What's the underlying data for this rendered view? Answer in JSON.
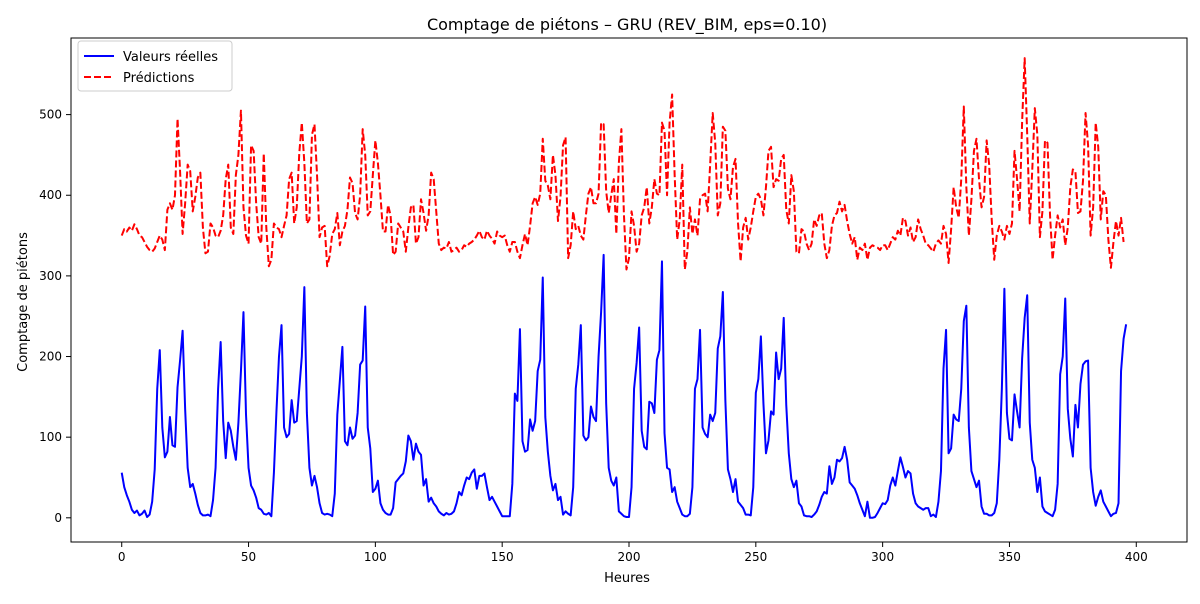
{
  "chart_data": {
    "type": "line",
    "title": "Comptage de piétons – GRU (REV_BIM, eps=0.10)",
    "xlabel": "Heures",
    "ylabel": "Comptage de piétons",
    "xlim": [
      -20,
      420
    ],
    "ylim": [
      -30,
      595
    ],
    "xticks": [
      0,
      50,
      100,
      150,
      200,
      250,
      300,
      350,
      400
    ],
    "yticks": [
      0,
      100,
      200,
      300,
      400,
      500
    ],
    "grid": false,
    "legend": {
      "position": "top-left"
    },
    "series": [
      {
        "name": "Valeurs réelles",
        "color": "#0000ff",
        "dash": "solid",
        "values": [
          56,
          38,
          28,
          20,
          10,
          6,
          9,
          3,
          5,
          9,
          1,
          4,
          20,
          60,
          160,
          208,
          112,
          75,
          82,
          125,
          90,
          88,
          162,
          195,
          232,
          135,
          62,
          38,
          42,
          30,
          16,
          6,
          3,
          3,
          4,
          2,
          22,
          62,
          160,
          218,
          120,
          74,
          118,
          108,
          88,
          72,
          118,
          182,
          255,
          128,
          62,
          40,
          34,
          25,
          12,
          10,
          5,
          4,
          6,
          2,
          56,
          132,
          200,
          239,
          112,
          100,
          104,
          146,
          118,
          120,
          160,
          200,
          286,
          130,
          62,
          40,
          52,
          38,
          18,
          6,
          4,
          5,
          4,
          2,
          30,
          128,
          170,
          212,
          95,
          90,
          112,
          98,
          102,
          130,
          190,
          195,
          262,
          112,
          86,
          32,
          36,
          46,
          18,
          10,
          6,
          4,
          4,
          12,
          44,
          48,
          52,
          55,
          70,
          102,
          95,
          72,
          92,
          82,
          78,
          40,
          48,
          20,
          25,
          18,
          14,
          8,
          5,
          3,
          6,
          4,
          5,
          8,
          18,
          32,
          28,
          40,
          50,
          48,
          56,
          60,
          36,
          52,
          52,
          55,
          38,
          22,
          26,
          20,
          14,
          8,
          2,
          2,
          2,
          2,
          42,
          154,
          145,
          234,
          95,
          82,
          84,
          122,
          108,
          120,
          182,
          196,
          298,
          125,
          82,
          52,
          34,
          42,
          22,
          26,
          4,
          8,
          5,
          3,
          38,
          160,
          190,
          239,
          102,
          96,
          100,
          138,
          125,
          120,
          200,
          255,
          326,
          142,
          62,
          46,
          40,
          50,
          8,
          5,
          2,
          1,
          1,
          38,
          160,
          192,
          236,
          108,
          88,
          85,
          144,
          142,
          130,
          196,
          208,
          318,
          105,
          62,
          60,
          32,
          38,
          20,
          12,
          4,
          2,
          2,
          5,
          38,
          160,
          172,
          233,
          112,
          104,
          100,
          128,
          120,
          130,
          210,
          225,
          280,
          145,
          60,
          48,
          32,
          48,
          20,
          16,
          12,
          4,
          4,
          3,
          38,
          155,
          172,
          225,
          142,
          80,
          96,
          132,
          128,
          205,
          172,
          185,
          248,
          140,
          80,
          48,
          38,
          46,
          18,
          14,
          3,
          2,
          2,
          1,
          4,
          8,
          16,
          26,
          32,
          30,
          64,
          42,
          50,
          72,
          70,
          74,
          88,
          72,
          44,
          40,
          36,
          28,
          18,
          10,
          2,
          20,
          0,
          0,
          1,
          6,
          12,
          18,
          17,
          22,
          40,
          50,
          40,
          58,
          75,
          63,
          50,
          58,
          55,
          30,
          18,
          14,
          12,
          10,
          12,
          12,
          2,
          4,
          1,
          20,
          58,
          185,
          233,
          80,
          86,
          128,
          122,
          120,
          160,
          244,
          263,
          112,
          58,
          48,
          38,
          46,
          14,
          5,
          5,
          3,
          3,
          6,
          18,
          72,
          160,
          284,
          130,
          98,
          96,
          153,
          132,
          112,
          198,
          248,
          276,
          118,
          72,
          62,
          32,
          50,
          14,
          8,
          6,
          4,
          2,
          10,
          42,
          178,
          200,
          272,
          135,
          98,
          76,
          140,
          112,
          166,
          190,
          194,
          195,
          62,
          32,
          15,
          26,
          34,
          20,
          14,
          8,
          2,
          5,
          6,
          18,
          182,
          222,
          240
        ]
      },
      {
        "name": "Prédictions",
        "color": "#ff0000",
        "dash": "dashed",
        "values": [
          350,
          358,
          355,
          360,
          356,
          364,
          358,
          350,
          348,
          342,
          336,
          332,
          330,
          334,
          342,
          350,
          345,
          332,
          382,
          390,
          382,
          400,
          495,
          430,
          352,
          390,
          438,
          430,
          380,
          398,
          422,
          428,
          360,
          328,
          330,
          365,
          360,
          350,
          348,
          356,
          375,
          420,
          438,
          360,
          352,
          425,
          450,
          505,
          385,
          350,
          340,
          462,
          455,
          390,
          348,
          340,
          452,
          360,
          312,
          320,
          365,
          360,
          358,
          348,
          362,
          375,
          420,
          428,
          365,
          385,
          452,
          490,
          440,
          365,
          370,
          475,
          488,
          425,
          348,
          360,
          362,
          312,
          325,
          352,
          358,
          378,
          338,
          355,
          362,
          382,
          422,
          415,
          378,
          370,
          400,
          482,
          450,
          375,
          380,
          425,
          468,
          440,
          400,
          355,
          355,
          388,
          375,
          326,
          330,
          365,
          360,
          355,
          330,
          360,
          385,
          388,
          340,
          348,
          395,
          378,
          356,
          375,
          428,
          420,
          380,
          340,
          332,
          335,
          334,
          342,
          330,
          332,
          335,
          330,
          332,
          338,
          336,
          340,
          342,
          345,
          350,
          356,
          348,
          345,
          356,
          350,
          346,
          340,
          355,
          350,
          348,
          350,
          338,
          330,
          342,
          342,
          330,
          322,
          338,
          352,
          338,
          362,
          390,
          398,
          388,
          402,
          470,
          418,
          412,
          395,
          450,
          425,
          368,
          398,
          462,
          472,
          322,
          338,
          380,
          358,
          362,
          350,
          345,
          375,
          402,
          410,
          390,
          390,
          402,
          490,
          488,
          405,
          378,
          400,
          420,
          352,
          440,
          482,
          376,
          308,
          322,
          380,
          362,
          330,
          340,
          375,
          385,
          410,
          365,
          385,
          420,
          402,
          400,
          490,
          480,
          400,
          490,
          525,
          425,
          345,
          370,
          438,
          308,
          330,
          385,
          352,
          370,
          350,
          395,
          400,
          402,
          380,
          438,
          502,
          465,
          375,
          390,
          485,
          480,
          408,
          395,
          435,
          445,
          365,
          318,
          360,
          372,
          345,
          360,
          380,
          398,
          402,
          395,
          375,
          410,
          455,
          460,
          410,
          420,
          418,
          445,
          450,
          382,
          365,
          425,
          405,
          330,
          328,
          358,
          355,
          340,
          332,
          340,
          370,
          362,
          375,
          378,
          340,
          322,
          332,
          362,
          375,
          378,
          392,
          380,
          388,
          368,
          352,
          340,
          348,
          320,
          335,
          332,
          340,
          320,
          335,
          338,
          336,
          335,
          332,
          338,
          338,
          332,
          340,
          348,
          345,
          356,
          350,
          372,
          368,
          350,
          360,
          342,
          348,
          370,
          358,
          350,
          340,
          338,
          334,
          330,
          340,
          344,
          340,
          362,
          352,
          316,
          358,
          410,
          385,
          372,
          420,
          510,
          410,
          350,
          395,
          455,
          470,
          420,
          385,
          398,
          468,
          438,
          370,
          320,
          350,
          362,
          355,
          345,
          362,
          352,
          365,
          455,
          420,
          380,
          492,
          570,
          475,
          365,
          432,
          508,
          475,
          348,
          380,
          468,
          465,
          375,
          320,
          350,
          375,
          360,
          370,
          338,
          360,
          410,
          432,
          430,
          378,
          380,
          418,
          502,
          462,
          350,
          385,
          490,
          460,
          370,
          405,
          400,
          345,
          310,
          342,
          368,
          350,
          372,
          342
        ]
      }
    ]
  }
}
